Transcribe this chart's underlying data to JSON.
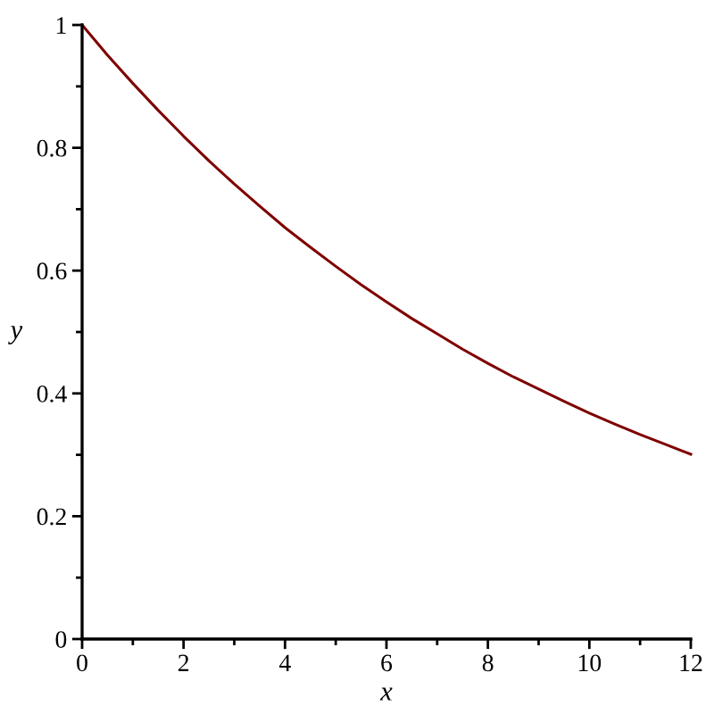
{
  "chart_data": {
    "type": "line",
    "xlabel": "x",
    "ylabel": "y",
    "x": [
      0,
      0.5,
      1,
      1.5,
      2,
      2.5,
      3,
      3.5,
      4,
      4.5,
      5,
      5.5,
      6,
      6.5,
      7,
      7.5,
      8,
      8.5,
      9,
      9.5,
      10,
      10.5,
      11,
      11.5,
      12
    ],
    "series": [
      {
        "color": "#7f0000",
        "values": [
          1.0,
          0.951,
          0.905,
          0.861,
          0.819,
          0.779,
          0.741,
          0.705,
          0.67,
          0.638,
          0.607,
          0.577,
          0.549,
          0.522,
          0.497,
          0.472,
          0.449,
          0.427,
          0.407,
          0.387,
          0.368,
          0.35,
          0.333,
          0.317,
          0.301
        ]
      }
    ],
    "xlim": [
      0,
      12
    ],
    "ylim": [
      0,
      1
    ],
    "xticks": [
      0,
      {
        "value": 1,
        "label": null
      },
      2,
      {
        "value": 3,
        "label": null
      },
      4,
      {
        "value": 5,
        "label": null
      },
      6,
      {
        "value": 7,
        "label": null
      },
      8,
      {
        "value": 9,
        "label": null
      },
      10,
      {
        "value": 11,
        "label": null
      },
      12
    ],
    "yticks": [
      0,
      {
        "value": 0.1,
        "label": null
      },
      0.2,
      {
        "value": 0.3,
        "label": null
      },
      0.4,
      {
        "value": 0.5,
        "label": null
      },
      0.6,
      {
        "value": 0.7,
        "label": null
      },
      0.8,
      {
        "value": 0.9,
        "label": null
      },
      1
    ],
    "marker": "none",
    "line_style": "solid"
  }
}
